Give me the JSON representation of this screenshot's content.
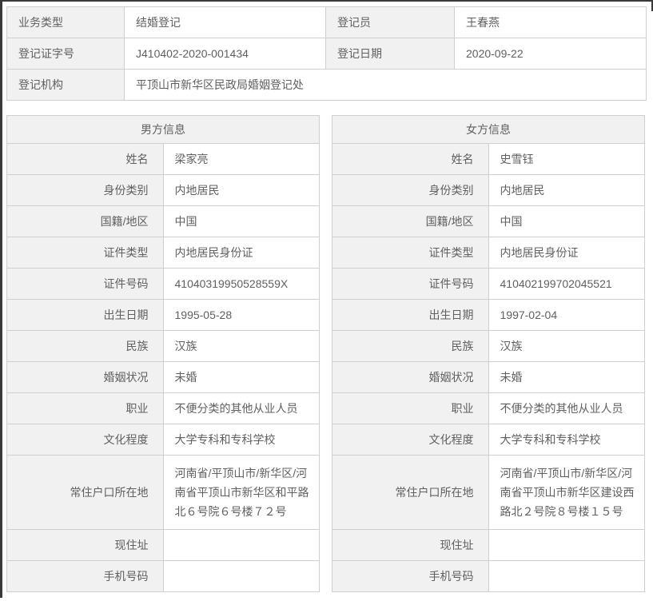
{
  "theme": {
    "label_bg": "#f1f1f1",
    "value_bg": "#ffffff",
    "border": "#cfcfcf",
    "text": "#606060",
    "frame_edge": "#3a3a3a"
  },
  "registration": {
    "business_type_label": "业务类型",
    "business_type": "结婚登记",
    "registrar_label": "登记员",
    "registrar": "王春燕",
    "cert_no_label": "登记证字号",
    "cert_no": "J410402-2020-001434",
    "reg_date_label": "登记日期",
    "reg_date": "2020-09-22",
    "org_label": "登记机构",
    "org": "平顶山市新华区民政局婚姻登记处"
  },
  "fields": [
    "姓名",
    "身份类别",
    "国籍/地区",
    "证件类型",
    "证件号码",
    "出生日期",
    "民族",
    "婚姻状况",
    "职业",
    "文化程度",
    "常住户口所在地",
    "现住址",
    "手机号码"
  ],
  "male": {
    "title": "男方信息",
    "values": [
      "梁家亮",
      "内地居民",
      "中国",
      "内地居民身份证",
      "41040319950528559X",
      "1995-05-28",
      "汉族",
      "未婚",
      "不便分类的其他从业人员",
      "大学专科和专科学校",
      "河南省/平顶山市/新华区/河南省平顶山市新华区和平路北６号院６号楼７２号",
      "",
      ""
    ]
  },
  "female": {
    "title": "女方信息",
    "values": [
      "史雪钰",
      "内地居民",
      "中国",
      "内地居民身份证",
      "410402199702045521",
      "1997-02-04",
      "汉族",
      "未婚",
      "不便分类的其他从业人员",
      "大学专科和专科学校",
      "河南省/平顶山市/新华区/河南省平顶山市新华区建设西路北２号院８号楼１５号",
      "",
      ""
    ]
  }
}
